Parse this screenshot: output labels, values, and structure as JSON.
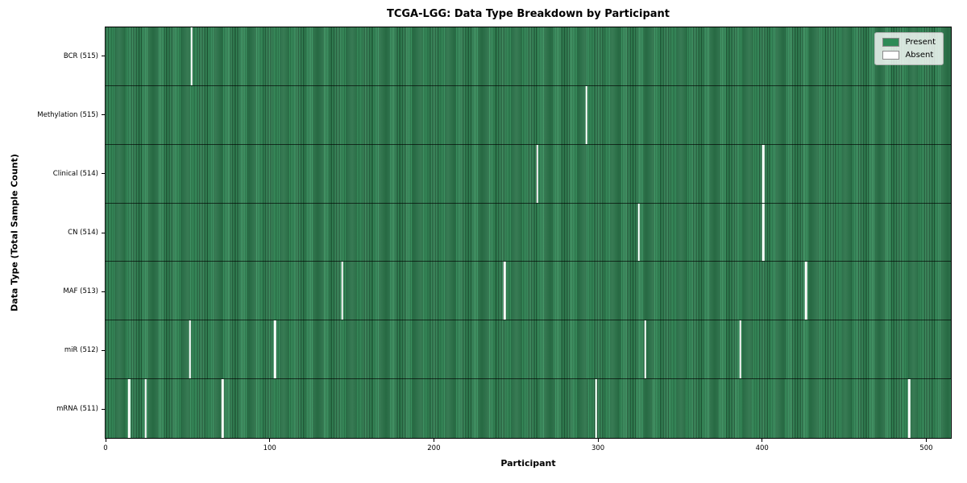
{
  "chart_data": {
    "type": "heatmap",
    "title": "TCGA-LGG: Data Type Breakdown by Participant",
    "xlabel": "Participant",
    "ylabel": "Data Type (Total Sample Count)",
    "total_participants": 516,
    "x_ticks": [
      0,
      100,
      200,
      300,
      400,
      500
    ],
    "xlim": [
      0,
      516
    ],
    "grid": false,
    "legend_position": "upper right",
    "colors": {
      "present": "#2e8b57",
      "absent": "#ffffff",
      "frame": "#000000"
    },
    "legend": [
      {
        "label": "Present",
        "color": "#2e8b57"
      },
      {
        "label": "Absent",
        "color": "#ffffff"
      }
    ],
    "rows": [
      {
        "label": "BCR (515)",
        "data_type": "BCR",
        "present_count": 515,
        "absent_participants": [
          52
        ]
      },
      {
        "label": "Methylation (515)",
        "data_type": "Methylation",
        "present_count": 515,
        "absent_participants": [
          293
        ]
      },
      {
        "label": "Clinical (514)",
        "data_type": "Clinical",
        "present_count": 514,
        "absent_participants": [
          263,
          401
        ]
      },
      {
        "label": "CN (514)",
        "data_type": "CN",
        "present_count": 514,
        "absent_participants": [
          325,
          401
        ]
      },
      {
        "label": "MAF (513)",
        "data_type": "MAF",
        "present_count": 513,
        "absent_participants": [
          144,
          243,
          427
        ]
      },
      {
        "label": "miR (512)",
        "data_type": "miR",
        "present_count": 512,
        "absent_participants": [
          51,
          103,
          329,
          387
        ]
      },
      {
        "label": "mRNA (511)",
        "data_type": "mRNA",
        "present_count": 511,
        "absent_participants": [
          14,
          24,
          71,
          299,
          490
        ]
      }
    ]
  }
}
